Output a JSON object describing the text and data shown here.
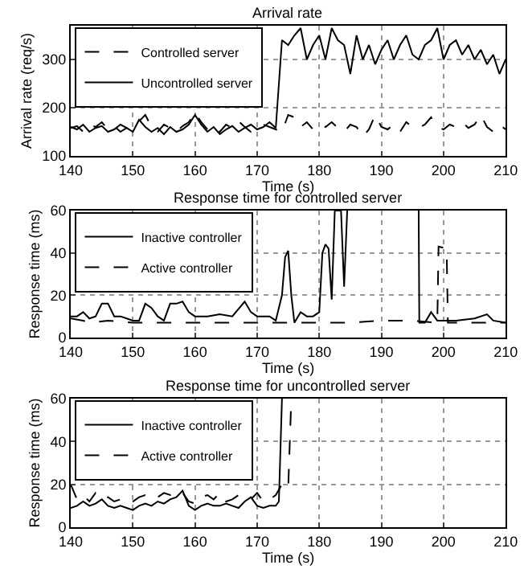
{
  "chart_data": [
    {
      "type": "line",
      "title": "Arrival rate",
      "xlabel": "Time (s)",
      "ylabel": "Arrival rate (req/s)",
      "xlim": [
        140,
        210
      ],
      "xticks": [
        140,
        150,
        160,
        170,
        180,
        190,
        200,
        210
      ],
      "ylim": [
        100,
        370
      ],
      "yticks": [
        100,
        200,
        300
      ],
      "grid": true,
      "legend": "top left",
      "series": [
        {
          "name": "Controlled server",
          "color": "#000000",
          "line_style": "dashed",
          "x": [
            140,
            141,
            142,
            143,
            144,
            145,
            146,
            147,
            148,
            149,
            150,
            151,
            152,
            153,
            154,
            155,
            156,
            157,
            158,
            159,
            160,
            161,
            162,
            163,
            164,
            165,
            166,
            167,
            168,
            169,
            170,
            171,
            172,
            173,
            174,
            175,
            176,
            177,
            178,
            179,
            180,
            181,
            182,
            183,
            184,
            185,
            186,
            187,
            188,
            189,
            190,
            191,
            192,
            193,
            194,
            195,
            196,
            197,
            198,
            199,
            200,
            201,
            202,
            203,
            204,
            205,
            206,
            207,
            208,
            209,
            210
          ],
          "values": [
            158,
            162,
            150,
            165,
            160,
            170,
            155,
            162,
            150,
            158,
            165,
            172,
            185,
            160,
            150,
            165,
            158,
            150,
            162,
            170,
            190,
            170,
            155,
            162,
            150,
            165,
            158,
            172,
            160,
            150,
            158,
            165,
            160,
            155,
            150,
            185,
            180,
            160,
            170,
            155,
            165,
            160,
            170,
            158,
            150,
            165,
            160,
            140,
            155,
            185,
            160,
            155,
            165,
            150,
            170,
            160,
            158,
            165,
            180,
            160,
            155,
            165,
            160,
            170,
            158,
            165,
            185,
            160,
            150,
            165,
            155
          ]
        },
        {
          "name": "Uncontrolled server",
          "color": "#000000",
          "line_style": "solid",
          "x": [
            140,
            141,
            142,
            143,
            144,
            145,
            146,
            147,
            148,
            149,
            150,
            151,
            152,
            153,
            154,
            155,
            156,
            157,
            158,
            159,
            160,
            161,
            162,
            163,
            164,
            165,
            166,
            167,
            168,
            169,
            170,
            171,
            172,
            173,
            174,
            175,
            176,
            177,
            178,
            179,
            180,
            181,
            182,
            183,
            184,
            185,
            186,
            187,
            188,
            189,
            190,
            191,
            192,
            193,
            194,
            195,
            196,
            197,
            198,
            199,
            200,
            201,
            202,
            203,
            204,
            205,
            206,
            207,
            208,
            209,
            210
          ],
          "values": [
            160,
            155,
            165,
            150,
            158,
            162,
            150,
            155,
            165,
            158,
            150,
            175,
            160,
            150,
            158,
            145,
            160,
            150,
            155,
            165,
            185,
            165,
            150,
            160,
            145,
            155,
            162,
            150,
            158,
            165,
            155,
            160,
            170,
            158,
            340,
            330,
            350,
            365,
            300,
            330,
            350,
            300,
            365,
            340,
            330,
            270,
            350,
            300,
            330,
            290,
            320,
            340,
            300,
            330,
            350,
            310,
            300,
            330,
            340,
            365,
            300,
            330,
            340,
            310,
            330,
            300,
            320,
            290,
            310,
            270,
            300
          ]
        }
      ]
    },
    {
      "type": "line",
      "title": "Response time for controlled server",
      "xlabel": "Time (s)",
      "ylabel": "Response time (ms)",
      "xlim": [
        140,
        210
      ],
      "xticks": [
        140,
        150,
        160,
        170,
        180,
        190,
        200,
        210
      ],
      "ylim": [
        0,
        60
      ],
      "yticks": [
        0,
        20,
        40,
        60
      ],
      "grid": true,
      "legend": "top left",
      "series": [
        {
          "name": "Inactive controller",
          "color": "#000000",
          "line_style": "solid",
          "x": [
            140,
            141,
            142,
            143,
            144,
            145,
            146,
            147,
            148,
            149,
            150,
            151,
            152,
            153,
            154,
            155,
            156,
            157,
            158,
            159,
            160,
            162,
            164,
            166,
            168,
            169,
            170,
            172,
            173,
            174,
            174.5,
            175,
            175.5,
            176,
            177,
            178,
            179,
            180,
            180.5,
            181,
            181.5,
            182,
            182.5,
            183.5,
            184,
            184.5,
            190,
            196,
            196.1,
            197,
            198,
            199,
            200,
            202,
            205,
            207,
            208,
            210
          ],
          "values": [
            10,
            10,
            12,
            9,
            10,
            16,
            16,
            10,
            10,
            9,
            8,
            8,
            16,
            14,
            10,
            8,
            16,
            16,
            17,
            12,
            10,
            10,
            11,
            10,
            17,
            12,
            10,
            10,
            8,
            20,
            38,
            41,
            20,
            7,
            12,
            10,
            10,
            12,
            40,
            44,
            42,
            18,
            60,
            60,
            24,
            60,
            null,
            60,
            7,
            7,
            12,
            8,
            8,
            8,
            9,
            11,
            8,
            7
          ]
        },
        {
          "name": "Active controller",
          "color": "#000000",
          "line_style": "dashed",
          "x": [
            140,
            142,
            143,
            146,
            150,
            160,
            170,
            176,
            180,
            185,
            190,
            195,
            199,
            199.2,
            200.5,
            200.7,
            205,
            210
          ],
          "values": [
            9,
            8,
            7,
            8,
            7,
            7,
            7,
            7,
            7,
            7,
            8,
            8,
            7,
            43,
            42,
            7,
            7,
            7
          ]
        }
      ]
    },
    {
      "type": "line",
      "title": "Response time for uncontrolled server",
      "xlabel": "Time (s)",
      "ylabel": "Response time (ms)",
      "xlim": [
        140,
        210
      ],
      "xticks": [
        140,
        150,
        160,
        170,
        180,
        190,
        200,
        210
      ],
      "ylim": [
        0,
        60
      ],
      "yticks": [
        0,
        20,
        40,
        60
      ],
      "grid": true,
      "legend": "top left",
      "series": [
        {
          "name": "Inactive controller",
          "color": "#000000",
          "line_style": "solid",
          "x": [
            140,
            141,
            142,
            143,
            144,
            145,
            146,
            147,
            148,
            149,
            150,
            151,
            152,
            153,
            154,
            155,
            156,
            157,
            158,
            159,
            160,
            161,
            162,
            163,
            164,
            165,
            166,
            167,
            168,
            169,
            170,
            171,
            172,
            173,
            173.5,
            174
          ],
          "values": [
            9,
            10,
            12,
            10,
            11,
            13,
            10,
            9,
            10,
            9,
            8,
            10,
            11,
            10,
            12,
            11,
            13,
            14,
            17,
            10,
            8,
            10,
            11,
            10,
            10,
            11,
            10,
            9,
            12,
            14,
            10,
            9,
            10,
            10,
            12,
            60
          ]
        },
        {
          "name": "Active controller",
          "color": "#000000",
          "line_style": "dashed",
          "x": [
            140,
            141,
            142,
            143,
            144,
            145,
            146,
            147,
            148,
            149,
            150,
            151,
            152,
            153,
            154,
            155,
            156,
            157,
            158,
            159,
            160,
            161,
            162,
            163,
            164,
            165,
            166,
            167,
            168,
            169,
            170,
            171,
            172,
            173,
            174,
            175,
            175.5
          ],
          "values": [
            20,
            13,
            15,
            12,
            16,
            13,
            14,
            12,
            13,
            11,
            12,
            14,
            15,
            13,
            14,
            16,
            15,
            17,
            16,
            12,
            11,
            14,
            15,
            13,
            16,
            12,
            13,
            15,
            14,
            13,
            16,
            12,
            13,
            15,
            20,
            18,
            60
          ]
        }
      ]
    }
  ]
}
